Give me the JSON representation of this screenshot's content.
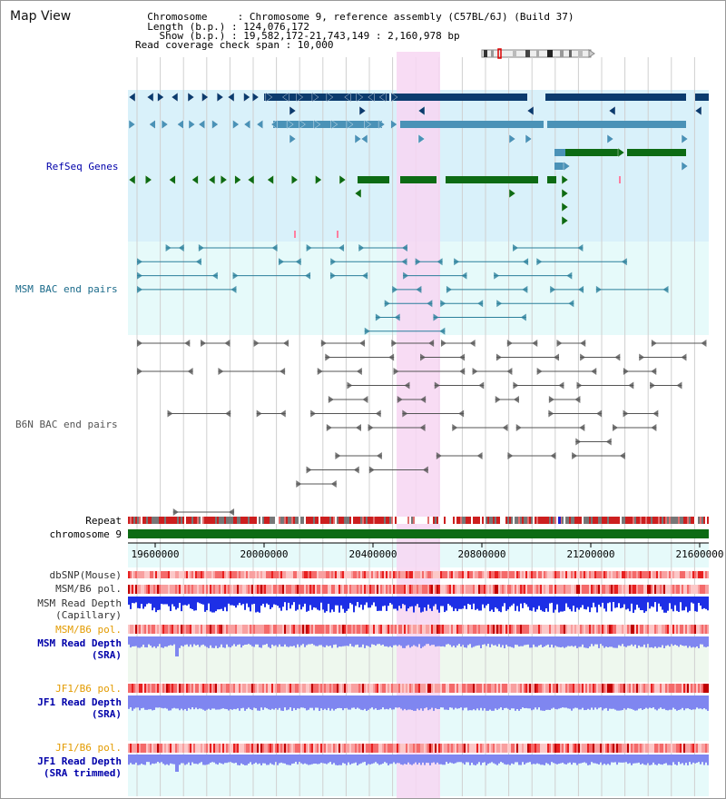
{
  "header": {
    "title": "Map View",
    "info_lines": [
      "  Chromosome     : Chromosome 9, reference assembly (C57BL/6J) (Build 37)",
      "  Length (b.p.) : 124,076,172",
      "    Show (b.p.) : 19,582,172-21,743,149 : 2,160,978 bp",
      "Read coverage check span : 10,000"
    ]
  },
  "tracks": {
    "refseq": "RefSeq Genes",
    "msm_bac": "MSM BAC end pairs",
    "b6n_bac": "B6N BAC end pairs",
    "repeat": "Repeat",
    "chromosome": "chromosome 9"
  },
  "axis": {
    "ticks": [
      "19600000",
      "20000000",
      "20400000",
      "20800000",
      "21200000",
      "21600000"
    ]
  },
  "lower_tracks": {
    "dbsnp": "dbSNP(Mouse)",
    "msm_b6_pol_1": "MSM/B6 pol.",
    "msm_read_depth_cap_1": "MSM Read Depth",
    "msm_read_depth_cap_2": "(Capillary)",
    "msm_b6_pol_2": "MSM/B6 pol.",
    "msm_read_depth_sra_1": "MSM Read Depth",
    "msm_read_depth_sra_2": "(SRA)",
    "jf1_b6_pol_1": "JF1/B6 pol.",
    "jf1_read_depth_sra_1": "JF1 Read Depth",
    "jf1_read_depth_sra_2": "(SRA)",
    "jf1_b6_pol_2": "JF1/B6 pol.",
    "jf1_read_depth_trim_1": "JF1 Read Depth",
    "jf1_read_depth_trim_2": "(SRA trimmed)"
  },
  "colors": {
    "refseq_bg": "#d9f1fa",
    "msm_bg": "#e6fafa",
    "highlight": "#f7d6f2",
    "gene_dark": "#0b3b6e",
    "gene_mid": "#4a92b7",
    "gene_green": "#0d6b14",
    "msm_line": "#2a7f9b",
    "b6n_line": "#555555",
    "depth_blue": "#1d2fe6",
    "depth_light": "#7f86f0",
    "pol_red": "#f04040",
    "label_blue": "#0000aa",
    "label_teal": "#1a6a8a",
    "label_orange": "#e39b00"
  }
}
